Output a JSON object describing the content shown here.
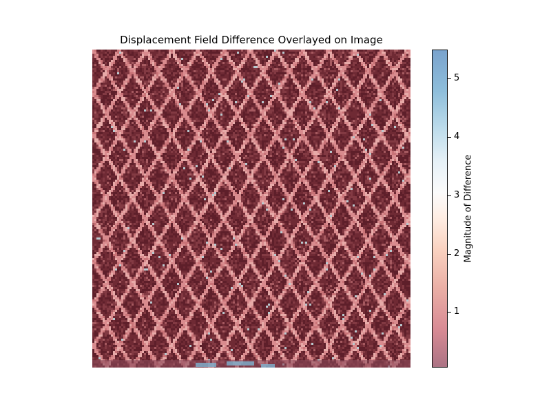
{
  "chart_data": {
    "type": "heatmap",
    "title": "Displacement Field Difference Overlayed on Image",
    "xlabel": "",
    "ylabel": "",
    "axes_visible": false,
    "pattern": "diagonal lattice (diamond / crosshatch) with noisy speckle",
    "colormap": "RdBu (red = low, blue = high), semi-transparent overlay",
    "colorbar": {
      "label": "Magnitude of Difference",
      "range": [
        0.05,
        5.5
      ],
      "ticks": [
        1,
        2,
        3,
        4,
        5
      ],
      "tick_labels": [
        "1",
        "2",
        "3",
        "4",
        "5"
      ]
    },
    "value_summary": {
      "background_cell_value": 0.3,
      "lattice_line_value": 1.5,
      "sparse_high_value_range": [
        2.5,
        5.0
      ]
    },
    "grid": false
  },
  "colors": {
    "low": "#67001f",
    "mid": "#f7f7f7",
    "high": "#2166ac"
  }
}
